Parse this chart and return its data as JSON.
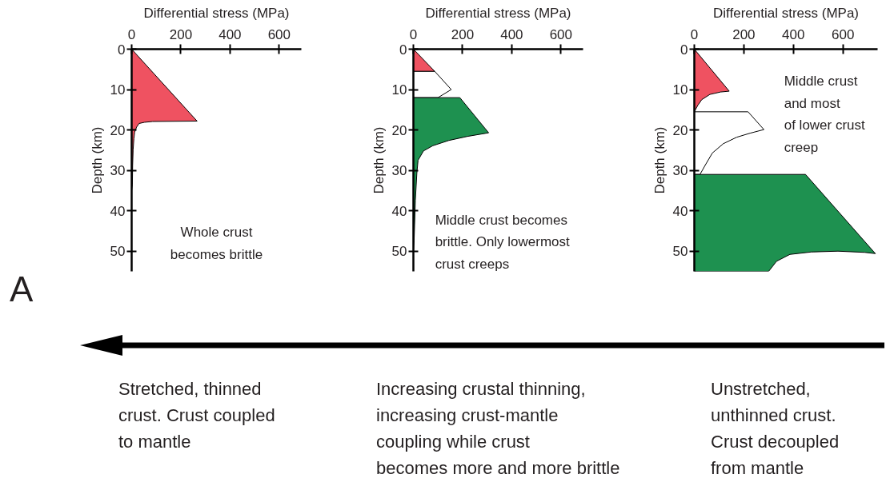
{
  "chart_data": [
    {
      "type": "area",
      "orientation": "horizontal",
      "xlabel": "Differential stress (MPa)",
      "ylabel": "Depth (km)",
      "xlim": [
        0,
        690
      ],
      "xticks": [
        0,
        200,
        400,
        600
      ],
      "ylim": [
        55,
        0
      ],
      "yticks": [
        0,
        10,
        20,
        30,
        40,
        50
      ],
      "series": [
        {
          "color": "#ef5261",
          "x": [
            0,
            17.8,
            17.9,
            18.1,
            18.4,
            19.3,
            20.6,
            22.2,
            24.9,
            28.8,
            33.5,
            35
          ],
          "values": [
            0,
            266,
            85,
            52,
            30,
            20,
            12,
            9,
            6,
            4,
            3,
            0
          ]
        }
      ],
      "annotations": [
        "Whole crust\nbecomes brittle"
      ]
    },
    {
      "type": "area",
      "orientation": "horizontal",
      "xlabel": "Differential stress (MPa)",
      "ylabel": "Depth (km)",
      "xlim": [
        0,
        690
      ],
      "xticks": [
        0,
        200,
        400,
        600
      ],
      "ylim": [
        55,
        0
      ],
      "yticks": [
        0,
        10,
        20,
        30,
        40,
        50
      ],
      "series": [
        {
          "color": "#ef5261",
          "x": [
            0,
            5.5,
            5.5
          ],
          "values": [
            0,
            87,
            0
          ]
        },
        {
          "color": "#ffffff",
          "x": [
            5.5,
            5.5,
            10,
            12,
            12
          ],
          "values": [
            0,
            87,
            154,
            100,
            0
          ]
        },
        {
          "color": "#1e9150",
          "x": [
            12,
            12,
            20.7,
            21.6,
            22.6,
            23.9,
            25.2,
            27.5,
            30.8,
            37.4,
            47.3,
            50
          ],
          "values": [
            0,
            189,
            306,
            219,
            144,
            79,
            41,
            19,
            14,
            8,
            3,
            0
          ]
        }
      ],
      "annotations": [
        "Middle crust becomes\nbrittle. Only lowermost\ncrust creeps"
      ]
    },
    {
      "type": "area",
      "orientation": "horizontal",
      "xlabel": "Differential stress (MPa)",
      "ylabel": "Depth (km)",
      "xlim": [
        0,
        740
      ],
      "xticks": [
        0,
        200,
        400,
        600
      ],
      "ylim": [
        55,
        0
      ],
      "yticks": [
        0,
        10,
        20,
        30,
        40,
        50
      ],
      "series": [
        {
          "color": "#ef5261",
          "x": [
            0,
            10.4,
            10.6,
            11.2,
            12.5,
            13.9,
            15.5
          ],
          "values": [
            0,
            141,
            106,
            63,
            30,
            14,
            0
          ]
        },
        {
          "color": "#ffffff",
          "x": [
            15.5,
            15.5,
            19.9,
            20.8,
            21.8,
            23.4,
            25.7,
            28.4,
            31,
            31
          ],
          "values": [
            0,
            217,
            281,
            225,
            171,
            117,
            73,
            47,
            23,
            0
          ]
        },
        {
          "color": "#1e9150",
          "x": [
            31,
            31,
            50.6,
            50.3,
            50.0,
            50.2,
            50.8,
            52.5,
            55,
            55
          ],
          "values": [
            0,
            449,
            731,
            688,
            580,
            472,
            386,
            332,
            300,
            0
          ]
        }
      ],
      "annotations": [
        "Middle crust\nand most\nof lower crust\ncreep"
      ]
    },
    {
      "type": "other",
      "annotations": [
        "A",
        "Stretched, thinned\ncrust. Crust coupled\nto mantle",
        "Increasing crustal thinning,\nincreasing crust-mantle\ncoupling while crust\nbecomes more and more brittle",
        "Unstretched,\nunthinned crust.\nCrust decoupled\nfrom mantle"
      ]
    }
  ]
}
